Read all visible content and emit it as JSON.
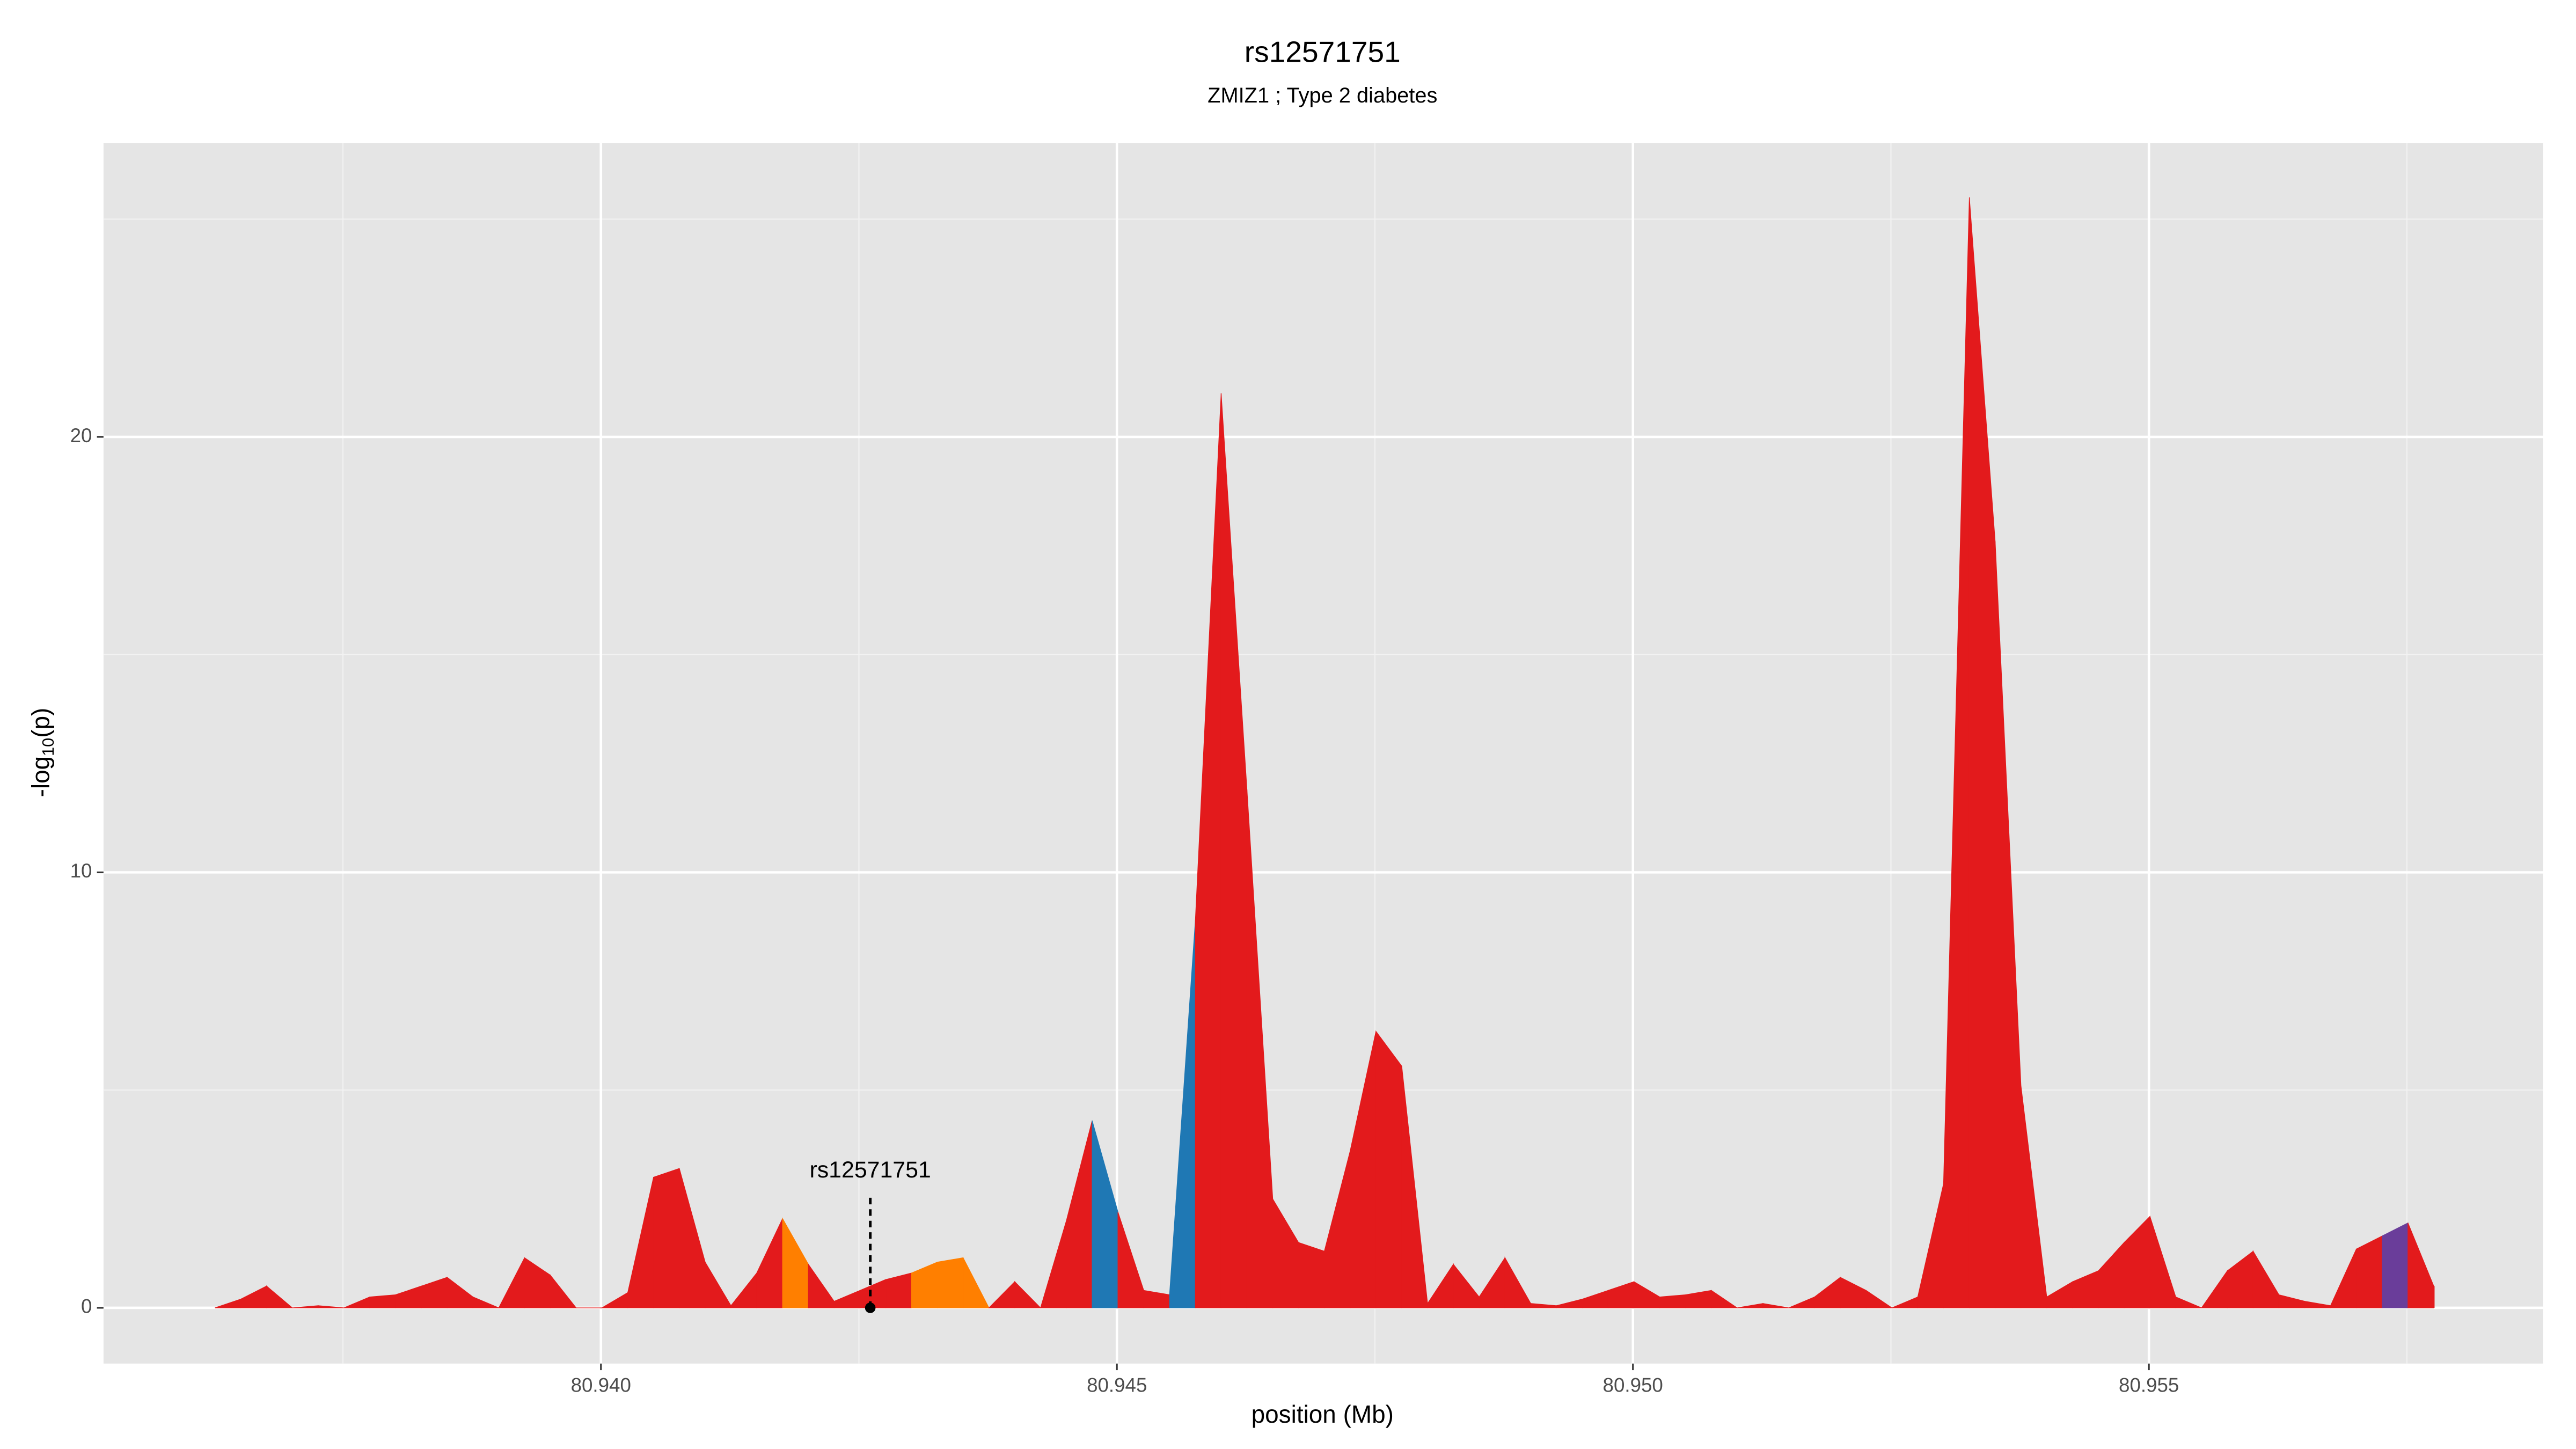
{
  "chart_data": {
    "type": "area",
    "title": "rs12571751",
    "subtitle": "ZMIZ1 ; Type 2 diabetes",
    "xlabel": "position (Mb)",
    "ylabel": {
      "prefix": "-log",
      "sub": "10",
      "suffix": "(p)"
    },
    "xlim": [
      80.93518,
      80.95882
    ],
    "ylim": [
      -1.28,
      26.75
    ],
    "xticks": [
      {
        "value": 80.94,
        "label": "80.940"
      },
      80.945,
      {
        "value": 80.95,
        "label": "80.950"
      },
      80.955
    ],
    "minor_xticks": [
      80.9375,
      80.9425,
      80.9475,
      80.9525,
      80.9575
    ],
    "yticks": [
      0,
      10,
      20
    ],
    "minor_yticks": [
      5,
      15,
      25
    ],
    "grid": true,
    "palette": {
      "red": "#e31a1c",
      "orange": "#ff7f00",
      "blue": "#1f78b4",
      "purple": "#6a3d9a"
    },
    "x": [
      80.93626,
      80.93651,
      80.93676,
      80.93701,
      80.93726,
      80.93751,
      80.93776,
      80.93801,
      80.93826,
      80.93851,
      80.93876,
      80.93901,
      80.93926,
      80.93951,
      80.93976,
      80.94001,
      80.94026,
      80.94051,
      80.94076,
      80.94101,
      80.94126,
      80.94151,
      80.94176,
      80.94201,
      80.94226,
      80.94251,
      80.94276,
      80.94301,
      80.94326,
      80.94351,
      80.94376,
      80.94401,
      80.94426,
      80.94451,
      80.94476,
      80.94501,
      80.94526,
      80.94551,
      80.94576,
      80.94601,
      80.94626,
      80.94651,
      80.94676,
      80.94701,
      80.94726,
      80.94751,
      80.94776,
      80.94801,
      80.94826,
      80.94851,
      80.94876,
      80.94901,
      80.94926,
      80.94951,
      80.94976,
      80.95001,
      80.95026,
      80.95051,
      80.95076,
      80.95101,
      80.95126,
      80.95151,
      80.95176,
      80.95201,
      80.95226,
      80.95251,
      80.95276,
      80.95301,
      80.95326,
      80.95351,
      80.95376,
      80.95401,
      80.95426,
      80.95451,
      80.95476,
      80.95501,
      80.95526,
      80.95551,
      80.95576,
      80.95601,
      80.95626,
      80.95651,
      80.95676,
      80.95701,
      80.95726,
      80.95751,
      80.95776
    ],
    "values": [
      0,
      0.2,
      0.5,
      0,
      0.05,
      0,
      0.25,
      0.3,
      0.5,
      0.7,
      0.25,
      0,
      1.15,
      0.75,
      0,
      0,
      0.35,
      3.0,
      3.2,
      1.05,
      0.05,
      0.8,
      2.05,
      1.0,
      0.15,
      0.4,
      0.65,
      0.8,
      1.05,
      1.15,
      0,
      0.6,
      0,
      2.0,
      4.3,
      2.2,
      0.4,
      0.3,
      8.9,
      21.0,
      11.9,
      2.5,
      1.5,
      1.3,
      3.6,
      6.35,
      5.55,
      0.1,
      1.0,
      0.25,
      1.15,
      0.1,
      0.05,
      0.2,
      0.4,
      0.6,
      0.25,
      0.3,
      0.4,
      0,
      0.1,
      0,
      0.25,
      0.7,
      0.4,
      0,
      0.25,
      2.85,
      25.5,
      17.6,
      5.1,
      0.25,
      0.6,
      0.85,
      1.5,
      2.1,
      0.25,
      0,
      0.85,
      1.3,
      0.3,
      0.15,
      0.05,
      1.35,
      1.65,
      1.95,
      0.5
    ],
    "colors": [
      "red",
      "red",
      "red",
      "red",
      "red",
      "red",
      "red",
      "red",
      "red",
      "red",
      "red",
      "red",
      "red",
      "red",
      "red",
      "red",
      "red",
      "red",
      "red",
      "red",
      "red",
      "red",
      "orange",
      "red",
      "red",
      "red",
      "red",
      "orange",
      "orange",
      "orange",
      "red",
      "red",
      "red",
      "red",
      "blue",
      "red",
      "red",
      "blue",
      "red",
      "red",
      "red",
      "red",
      "red",
      "red",
      "red",
      "red",
      "red",
      "red",
      "red",
      "red",
      "red",
      "red",
      "red",
      "red",
      "red",
      "red",
      "red",
      "red",
      "red",
      "red",
      "red",
      "red",
      "red",
      "red",
      "red",
      "red",
      "red",
      "red",
      "red",
      "red",
      "red",
      "red",
      "red",
      "red",
      "red",
      "red",
      "red",
      "red",
      "red",
      "red",
      "red",
      "red",
      "red",
      "red",
      "purple",
      "red",
      "red"
    ],
    "annotation": {
      "label": "rs12571751",
      "x": 80.94261,
      "y": 0
    }
  }
}
